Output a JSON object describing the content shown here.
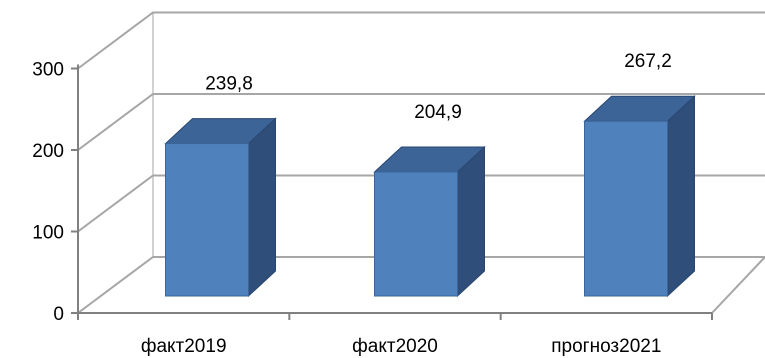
{
  "chart_data": {
    "type": "bar",
    "style": "3d-column",
    "categories": [
      "факт2019",
      "факт2020",
      "прогноз2021"
    ],
    "values": [
      239.8,
      204.9,
      267.2
    ],
    "data_labels": [
      "239,8",
      "204,9",
      "267,2"
    ],
    "y_ticks": [
      "0",
      "100",
      "200",
      "300"
    ],
    "ylim": [
      0,
      300
    ],
    "title": "",
    "xlabel": "",
    "ylabel": "",
    "grid": true,
    "legend": "none",
    "colors": {
      "bar_front": "#4f81bd",
      "bar_side": "#2f4f7a",
      "bar_top": "#3d6496",
      "grid": "#a6a6a6",
      "axis": "#808080"
    }
  }
}
